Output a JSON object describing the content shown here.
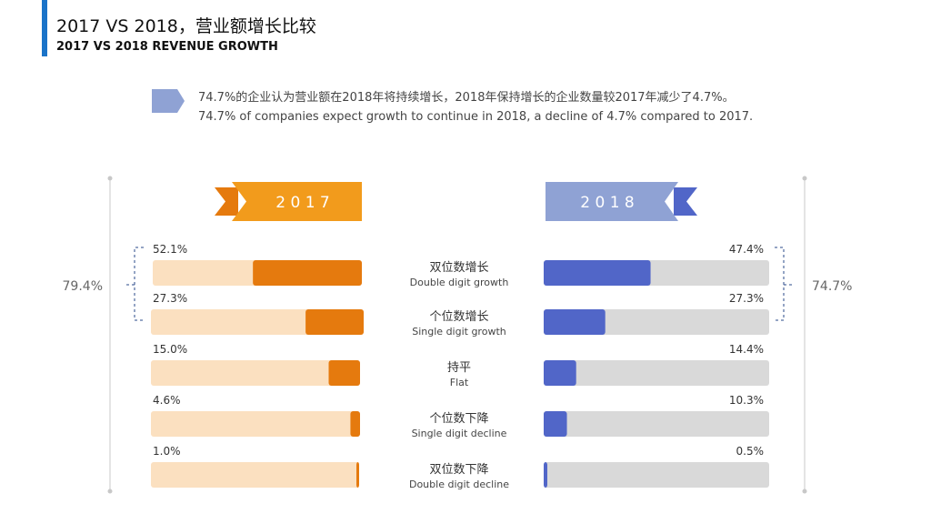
{
  "header": {
    "title_zh": "2017 VS 2018，营业额增长比较",
    "title_en": "2017 VS 2018 REVENUE GROWTH"
  },
  "note": {
    "zh": "74.7%的企业认为营业额在2018年将持续增长，2018年保持增长的企业数量较2017年减少了4.7%。",
    "en": "74.7% of companies expect growth to continue in 2018, a decline of 4.7% compared to 2017."
  },
  "colors": {
    "y2017_bar": "#e57a0e",
    "y2017_track": "#fbe0c0",
    "y2017_banner": "#f29b1c",
    "y2018_bar": "#5166c8",
    "y2018_track": "#d9d9d9",
    "y2018_banner": "#8fa2d4",
    "accent": "#1a73c8"
  },
  "chart_data": {
    "type": "bar",
    "categories": [
      {
        "zh": "双位数增长",
        "en": "Double digit growth"
      },
      {
        "zh": "个位数增长",
        "en": "Single digit growth"
      },
      {
        "zh": "持平",
        "en": "Flat"
      },
      {
        "zh": "个位数下降",
        "en": "Single digit decline"
      },
      {
        "zh": "双位数下降",
        "en": "Double digit decline"
      }
    ],
    "series": [
      {
        "name": "2 0 1 7",
        "values": [
          52.1,
          27.3,
          15.0,
          4.6,
          1.0
        ],
        "labels": [
          "52.1%",
          "27.3%",
          "15.0%",
          "4.6%",
          "1.0%"
        ]
      },
      {
        "name": "2 0 1 8",
        "values": [
          47.4,
          27.3,
          14.4,
          10.3,
          0.5
        ],
        "labels": [
          "47.4%",
          "27.3%",
          "14.4%",
          "10.3%",
          "0.5%"
        ]
      }
    ],
    "group_totals": [
      {
        "series": "2 0 1 7",
        "label": "79.4%",
        "value": 79.4
      },
      {
        "series": "2 0 1 8",
        "label": "74.7%",
        "value": 74.7
      }
    ],
    "ylim": [
      0,
      100
    ]
  }
}
